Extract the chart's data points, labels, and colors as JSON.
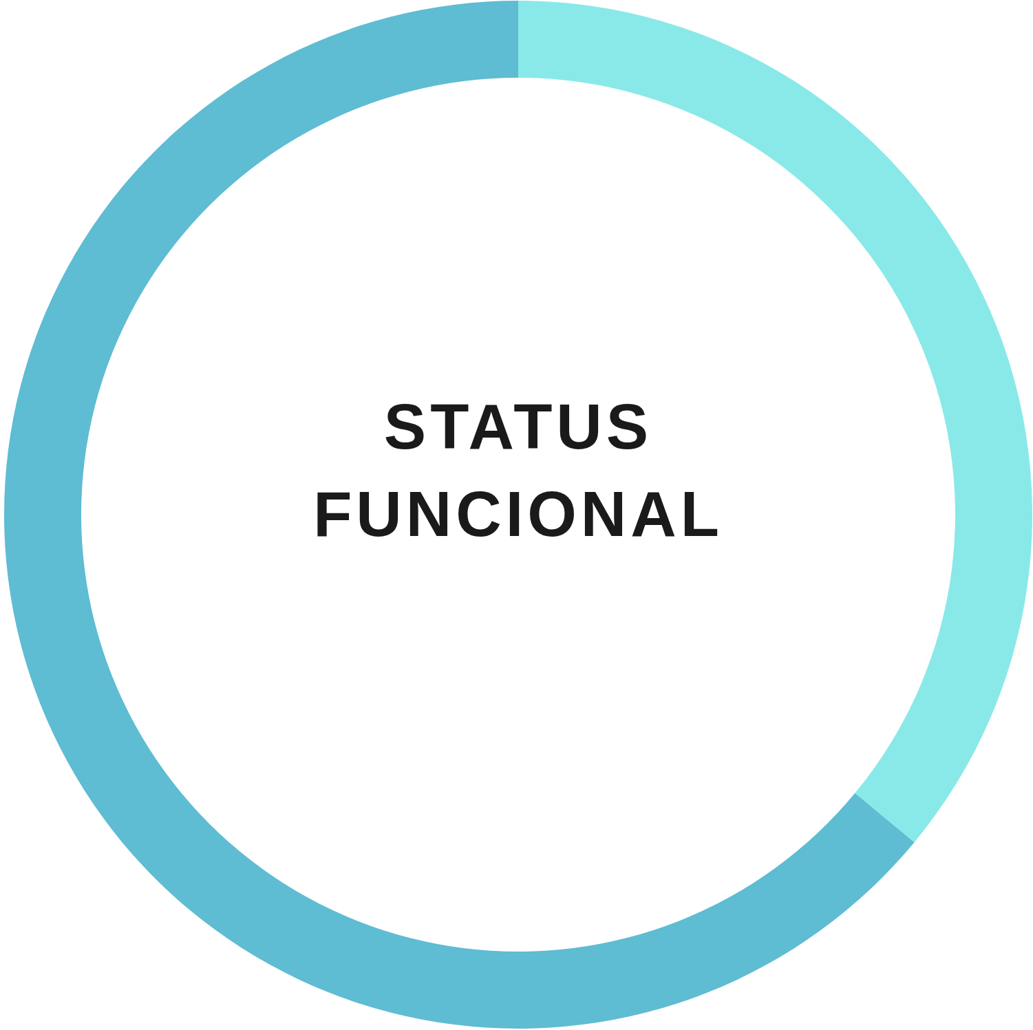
{
  "chart_data": {
    "type": "donut",
    "title": "STATUS FUNCIONAL",
    "categories": [
      null,
      null
    ],
    "values": [
      36,
      64
    ],
    "colors": [
      "#89e9e8",
      "#5ebcd3"
    ]
  }
}
